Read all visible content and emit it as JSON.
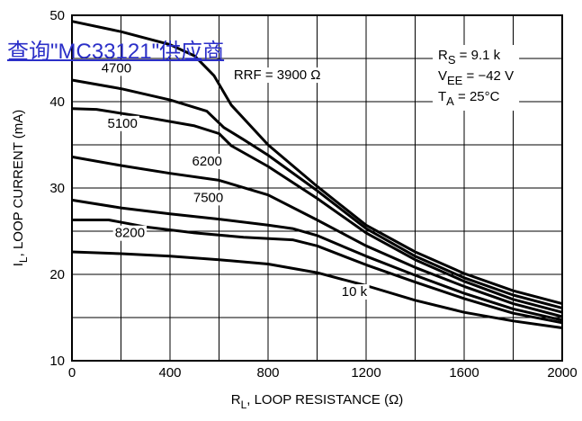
{
  "overlay_link": "查询\"MC33121\"供应商",
  "chart_data": {
    "type": "line",
    "xlabel_parts": {
      "pre": "R",
      "sub": "L",
      "post": ", LOOP RESISTANCE (Ω)"
    },
    "ylabel_parts": {
      "pre": "I",
      "sub": "L",
      "post": ", LOOP CURRENT (mA)"
    },
    "xlim": [
      0,
      2000
    ],
    "ylim": [
      10,
      50
    ],
    "x_ticks": [
      0,
      400,
      800,
      1200,
      1600,
      2000
    ],
    "y_ticks": [
      10,
      20,
      30,
      40,
      50
    ],
    "x_grid_step": 200,
    "y_grid_step": 5,
    "grid": true,
    "conditions": [
      {
        "pre": "R",
        "sub": "S",
        "post": " = 9.1 k"
      },
      {
        "pre": "V",
        "sub": "EE",
        "post": " = −42 V"
      },
      {
        "pre": "T",
        "sub": "A",
        "post": " = 25°C"
      }
    ],
    "series": [
      {
        "name": "RRF = 3900 Ω",
        "label_x": 660,
        "label_y": 42.6,
        "x": [
          0,
          200,
          400,
          500,
          580,
          650,
          800,
          1000,
          1200,
          1400,
          1600,
          1800,
          2000
        ],
        "y": [
          49.3,
          48.1,
          46.6,
          45.3,
          43.0,
          39.6,
          35.0,
          30.2,
          25.7,
          22.6,
          20.1,
          18.1,
          16.6
        ]
      },
      {
        "name": "4700",
        "label_x": 120,
        "label_y": 43.4,
        "x": [
          0,
          200,
          400,
          550,
          620,
          700,
          800,
          1000,
          1200,
          1400,
          1600,
          1800,
          2000
        ],
        "y": [
          42.5,
          41.5,
          40.2,
          38.9,
          37.0,
          35.6,
          33.8,
          29.7,
          25.3,
          22.1,
          19.6,
          17.6,
          16.1
        ]
      },
      {
        "name": "5100",
        "label_x": 145,
        "label_y": 37.0,
        "x": [
          0,
          100,
          300,
          500,
          600,
          650,
          800,
          1000,
          1200,
          1400,
          1600,
          1800,
          2000
        ],
        "y": [
          39.2,
          39.1,
          38.2,
          37.2,
          36.3,
          34.9,
          32.5,
          28.8,
          24.8,
          21.7,
          19.2,
          17.1,
          15.6
        ]
      },
      {
        "name": "6200",
        "label_x": 490,
        "label_y": 32.6,
        "x": [
          0,
          200,
          400,
          600,
          800,
          1000,
          1200,
          1400,
          1600,
          1800,
          2000
        ],
        "y": [
          33.6,
          32.6,
          31.7,
          30.9,
          29.2,
          26.3,
          23.3,
          20.8,
          18.6,
          16.6,
          15.1
        ]
      },
      {
        "name": "7500",
        "label_x": 495,
        "label_y": 28.4,
        "x": [
          0,
          200,
          400,
          600,
          800,
          900,
          1000,
          1200,
          1400,
          1600,
          1800,
          2000
        ],
        "y": [
          28.6,
          27.7,
          27.0,
          26.4,
          25.7,
          25.3,
          24.5,
          22.1,
          19.9,
          17.8,
          16.0,
          14.7
        ]
      },
      {
        "name": "8200",
        "label_x": 175,
        "label_y": 24.3,
        "x": [
          0,
          150,
          300,
          500,
          700,
          900,
          1000,
          1200,
          1400,
          1600,
          1800,
          2000
        ],
        "y": [
          26.3,
          26.3,
          25.5,
          24.8,
          24.3,
          24.0,
          23.3,
          21.1,
          19.1,
          17.2,
          15.5,
          14.4
        ]
      },
      {
        "name": "10 k",
        "label_x": 1100,
        "label_y": 17.5,
        "x": [
          0,
          200,
          400,
          600,
          800,
          1000,
          1200,
          1400,
          1600,
          1800,
          2000
        ],
        "y": [
          22.6,
          22.4,
          22.1,
          21.7,
          21.2,
          20.2,
          18.7,
          17.0,
          15.6,
          14.6,
          13.8
        ]
      }
    ]
  }
}
